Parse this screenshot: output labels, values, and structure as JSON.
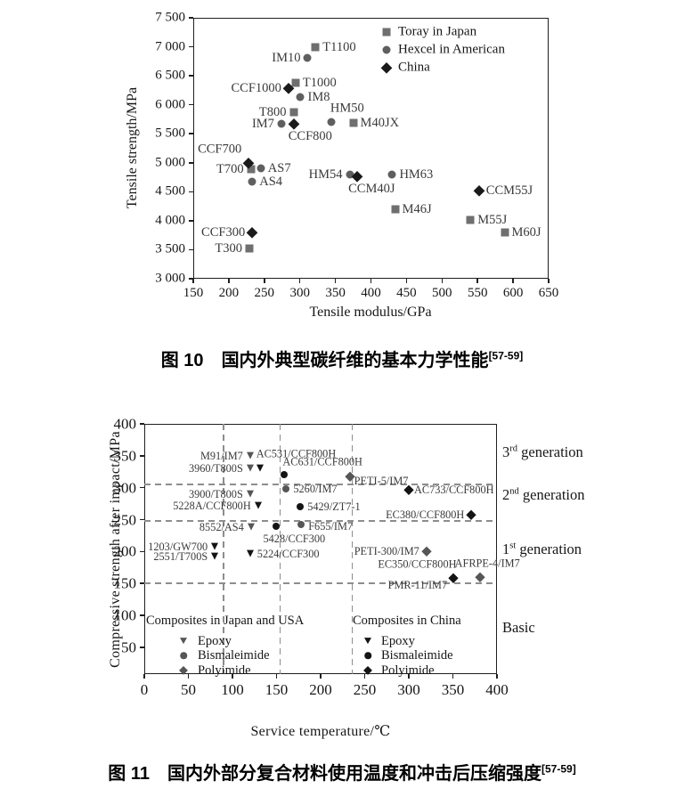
{
  "figure1": {
    "caption": {
      "label": "图 10",
      "text": "国内外典型碳纤维的基本力学性能",
      "ref": "[57-59]"
    }
  },
  "figure2": {
    "caption": {
      "label": "图 11",
      "text": "国内外部分复合材料使用温度和冲击后压缩强度",
      "ref": "[57-59]"
    }
  },
  "chart_data": [
    {
      "type": "scatter",
      "title": "",
      "xlabel": "Tensile modulus/GPa",
      "ylabel": "Tensile strength/MPa",
      "xlim": [
        150,
        650
      ],
      "ylim": [
        3000,
        7500
      ],
      "grid": false,
      "legend_position": "top-right-inside",
      "x_ticks": {
        "values": [
          150,
          200,
          250,
          300,
          350,
          400,
          450,
          500,
          550,
          600,
          650
        ],
        "labels": [
          "150",
          "200",
          "250",
          "300",
          "350",
          "400",
          "450",
          "500",
          "550",
          "600",
          "650"
        ]
      },
      "y_ticks": {
        "values": [
          7500,
          7000,
          6500,
          6000,
          5500,
          5000,
          4500,
          4000,
          3500,
          3000
        ],
        "labels": [
          "7 500",
          "7 000",
          "6 500",
          "6 000",
          "5 500",
          "5 000",
          "4 500",
          "4 000",
          "3 500",
          "3 000"
        ]
      },
      "series": [
        {
          "name": "Toray in Japan",
          "marker": "square",
          "color": "#6f6f6f",
          "points": [
            {
              "label": "T1100",
              "x": 322,
              "y": 7000,
              "pos": "r"
            },
            {
              "label": "T1000",
              "x": 294,
              "y": 6380,
              "pos": "r"
            },
            {
              "label": "T800",
              "x": 291,
              "y": 5870,
              "pos": "l"
            },
            {
              "label": "M40JX",
              "x": 375,
              "y": 5690,
              "pos": "r"
            },
            {
              "label": "T700",
              "x": 231,
              "y": 4890,
              "pos": "l"
            },
            {
              "label": "T300",
              "x": 229,
              "y": 3520,
              "pos": "l"
            },
            {
              "label": "M46J",
              "x": 434,
              "y": 4200,
              "pos": "r"
            },
            {
              "label": "M55J",
              "x": 540,
              "y": 4010,
              "pos": "r"
            },
            {
              "label": "M60J",
              "x": 588,
              "y": 3800,
              "pos": "r"
            }
          ]
        },
        {
          "name": "Hexcel in American",
          "marker": "circle",
          "color": "#5f5f5f",
          "points": [
            {
              "label": "IM10",
              "x": 311,
              "y": 6810,
              "pos": "l"
            },
            {
              "label": "IM8",
              "x": 301,
              "y": 6140,
              "pos": "r"
            },
            {
              "label": "IM7",
              "x": 274,
              "y": 5670,
              "pos": "l"
            },
            {
              "label": "HM50",
              "x": 344,
              "y": 5700,
              "pos": "a",
              "dx": 18,
              "dy": -1
            },
            {
              "label": "AS7",
              "x": 245,
              "y": 4900,
              "pos": "r"
            },
            {
              "label": "AS4",
              "x": 233,
              "y": 4680,
              "pos": "r"
            },
            {
              "label": "HM54",
              "x": 370,
              "y": 4800,
              "pos": "l"
            },
            {
              "label": "HM63",
              "x": 430,
              "y": 4800,
              "pos": "r"
            }
          ]
        },
        {
          "name": "China",
          "marker": "diamond",
          "color": "#1a1a1a",
          "points": [
            {
              "label": "CCF1000",
              "x": 284,
              "y": 6290,
              "pos": "l"
            },
            {
              "label": "CCF800",
              "x": 292,
              "y": 5670,
              "pos": "b",
              "dx": 18
            },
            {
              "label": "CCF700",
              "x": 228,
              "y": 5000,
              "pos": "al",
              "dx": -12,
              "dy": -2
            },
            {
              "label": "CCF300",
              "x": 233,
              "y": 3800,
              "pos": "l"
            },
            {
              "label": "CCM40J",
              "x": 381,
              "y": 4770,
              "pos": "b",
              "dx": 16
            },
            {
              "label": "CCM55J",
              "x": 552,
              "y": 4520,
              "pos": "r"
            }
          ]
        }
      ]
    },
    {
      "type": "scatter",
      "title": "",
      "xlabel": "Service temperature/℃",
      "ylabel": "Compressive strength after impact/MPa",
      "xlim": [
        0,
        400
      ],
      "ylim": [
        0,
        400
      ],
      "grid": false,
      "x_ticks": {
        "values": [
          0,
          50,
          100,
          150,
          200,
          250,
          300,
          350,
          400
        ],
        "labels": [
          "0",
          "50",
          "100",
          "150",
          "200",
          "250",
          "300",
          "350",
          "400"
        ]
      },
      "y_ticks": {
        "values": [
          400,
          350,
          300,
          250,
          200,
          150,
          100,
          50
        ],
        "labels": [
          "400",
          "350",
          "300",
          "250",
          "200",
          "150",
          "100",
          "50"
        ]
      },
      "dashed_h_lines": [
        305,
        248,
        150
      ],
      "dashed_v_lines": [
        90,
        154,
        236
      ],
      "series": [
        {
          "name": "Composites in Japan and USA",
          "color": "#565656",
          "points": [
            {
              "label": "M91/IM7",
              "x": 120,
              "y": 350,
              "marker": "triangle",
              "pos": "l"
            },
            {
              "label": "3960/T800S",
              "x": 120,
              "y": 330,
              "marker": "triangle",
              "pos": "l"
            },
            {
              "label": "3900/T800S",
              "x": 120,
              "y": 290,
              "marker": "triangle",
              "pos": "l"
            },
            {
              "label": "8552/AS4",
              "x": 121,
              "y": 238,
              "marker": "triangle",
              "pos": "l"
            },
            {
              "label": "5260/IM7",
              "x": 161,
              "y": 298,
              "marker": "circle",
              "pos": "r"
            },
            {
              "label": "F655/IM7",
              "x": 178,
              "y": 242,
              "marker": "circle",
              "pos": "r",
              "dy": 2
            },
            {
              "label": "PETI-5/IM7",
              "x": 233,
              "y": 318,
              "marker": "diamond",
              "pos": "r",
              "dx": -3,
              "dy": 5
            },
            {
              "label": "PETI-300/IM7",
              "x": 320,
              "y": 200,
              "marker": "diamond",
              "pos": "l"
            },
            {
              "label": "AFRPE-4/IM7",
              "x": 381,
              "y": 160,
              "marker": "diamond",
              "pos": "a",
              "dx": 8,
              "dy": -2
            }
          ]
        },
        {
          "name": "Composites in China",
          "color": "#141414",
          "points": [
            {
              "label": "AC531/CCF800H",
              "x": 131,
              "y": 330,
              "marker": "triangle",
              "pos": "ar",
              "dy": -4
            },
            {
              "label": "AC631/CCF800H",
              "x": 159,
              "y": 321,
              "marker": "circle",
              "pos": "ar",
              "dx": 2,
              "dy": -2
            },
            {
              "label": "5228A/CCF800H",
              "x": 129,
              "y": 272,
              "marker": "triangle",
              "pos": "l"
            },
            {
              "label": "5429/ZT7-1",
              "x": 177,
              "y": 270,
              "marker": "circle",
              "pos": "r"
            },
            {
              "label": "5428/CCF300",
              "x": 149,
              "y": 240,
              "marker": "circle",
              "pos": "br",
              "dx": -10,
              "dy": 2
            },
            {
              "label": "5224/CCF300",
              "x": 120,
              "y": 197,
              "marker": "triangle",
              "pos": "r"
            },
            {
              "label": "1203/GW700",
              "x": 80,
              "y": 208,
              "marker": "triangle",
              "pos": "l"
            },
            {
              "label": "2551/T700S",
              "x": 80,
              "y": 192,
              "marker": "triangle",
              "pos": "l"
            },
            {
              "label": "AC733/CCF800H",
              "x": 300,
              "y": 297,
              "marker": "diamond",
              "pos": "r",
              "dx": -2
            },
            {
              "label": "EC380/CCF800H",
              "x": 371,
              "y": 258,
              "marker": "diamond",
              "pos": "l"
            },
            {
              "label": "EC350/CCF800H",
              "x": 350,
              "y": 158,
              "marker": "diamond",
              "pos": "al",
              "dy": -3
            }
          ]
        }
      ],
      "text_annotations": [
        {
          "text": "PMR-11/IM7",
          "x": 310,
          "y": 147
        }
      ],
      "right_annotations": [
        {
          "prefix": "3",
          "sup": "rd",
          "suffix": " generation",
          "y": 355
        },
        {
          "prefix": "2",
          "sup": "nd",
          "suffix": " generation",
          "y": 288
        },
        {
          "prefix": "1",
          "sup": "st",
          "suffix": " generation",
          "y": 203
        },
        {
          "prefix": "Basic",
          "sup": "",
          "suffix": "",
          "y": 80
        }
      ],
      "inner_legends": [
        {
          "title": "Composites in Japan and USA",
          "color": "#565656",
          "items": [
            {
              "marker": "triangle",
              "label": "Epoxy"
            },
            {
              "marker": "circle",
              "label": "Bismaleimide"
            },
            {
              "marker": "diamond",
              "label": "Polyimide"
            }
          ]
        },
        {
          "title": "Composites in China",
          "color": "#141414",
          "items": [
            {
              "marker": "triangle",
              "label": "Epoxy"
            },
            {
              "marker": "circle",
              "label": "Bismaleimide"
            },
            {
              "marker": "diamond",
              "label": "Polyimide"
            }
          ]
        }
      ]
    }
  ]
}
